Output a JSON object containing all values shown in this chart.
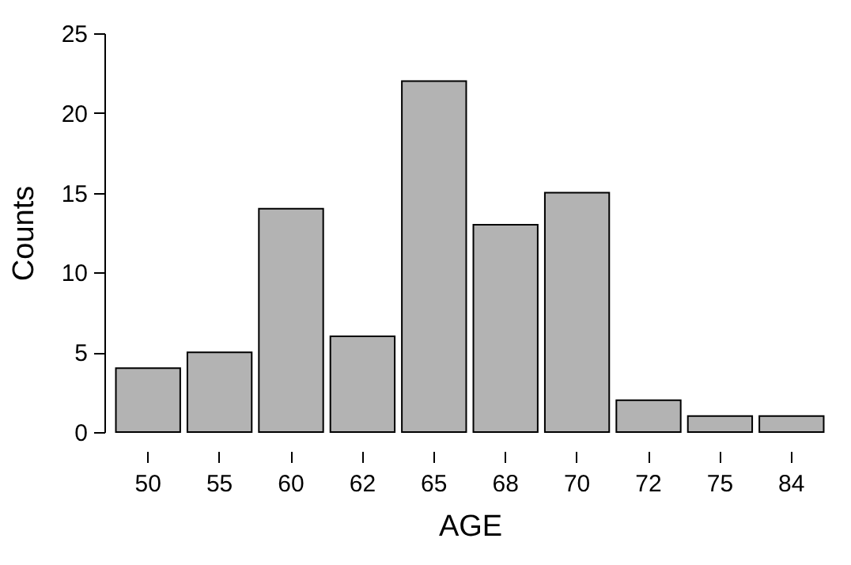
{
  "chart_data": {
    "type": "bar",
    "xlabel": "AGE",
    "ylabel": "Counts",
    "categories": [
      "50",
      "55",
      "60",
      "62",
      "65",
      "68",
      "70",
      "72",
      "75",
      "84"
    ],
    "values": [
      4,
      5,
      14,
      6,
      22,
      13,
      15,
      2,
      1,
      1
    ],
    "color": "#b3b3b3",
    "ylim": [
      0,
      25
    ],
    "yticks": [
      0,
      5,
      10,
      15,
      20,
      25
    ]
  }
}
